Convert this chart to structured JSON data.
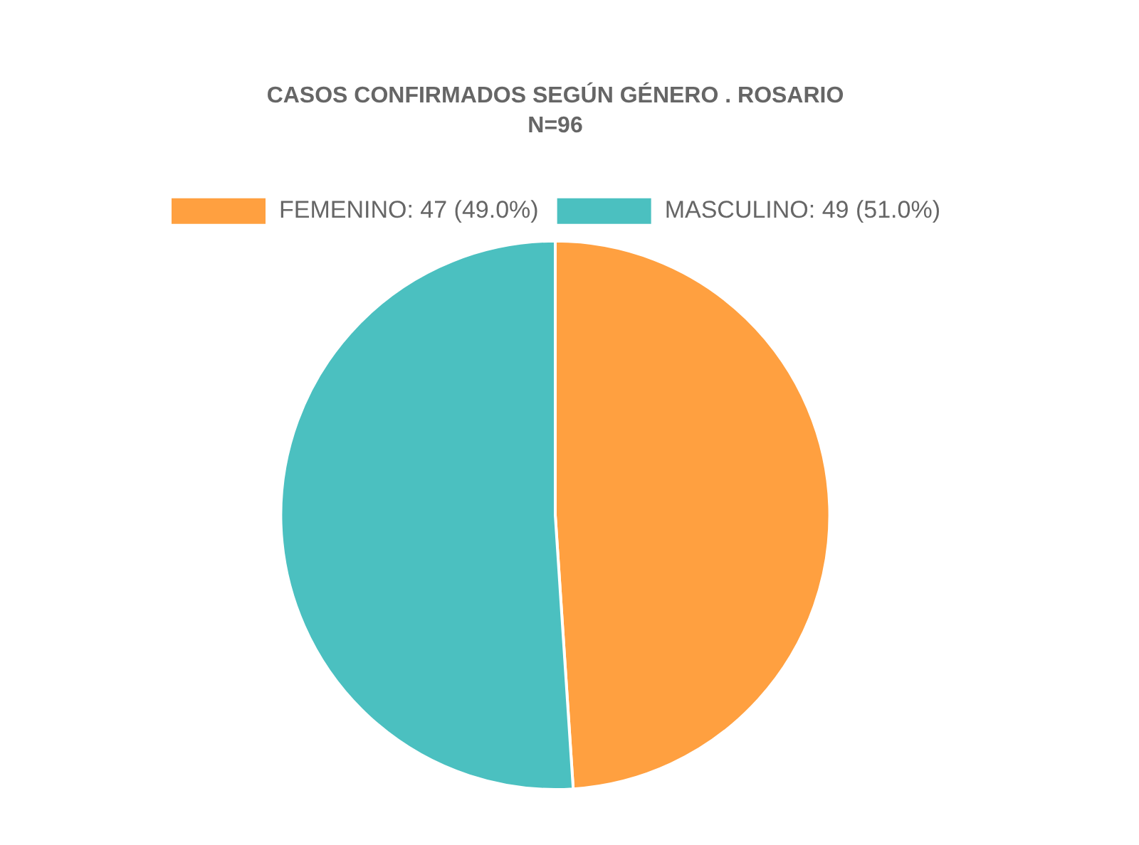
{
  "chart_data": {
    "type": "pie",
    "title": "CASOS CONFIRMADOS SEGÚN GÉNERO . ROSARIO",
    "subtitle": "N=96",
    "categories": [
      "FEMENINO: 47 (49.0%)",
      "MASCULINO: 49 (51.0%)"
    ],
    "values": [
      47,
      49
    ],
    "colors": [
      "#ffa040",
      "#4bc0c0"
    ],
    "legend": "top"
  }
}
